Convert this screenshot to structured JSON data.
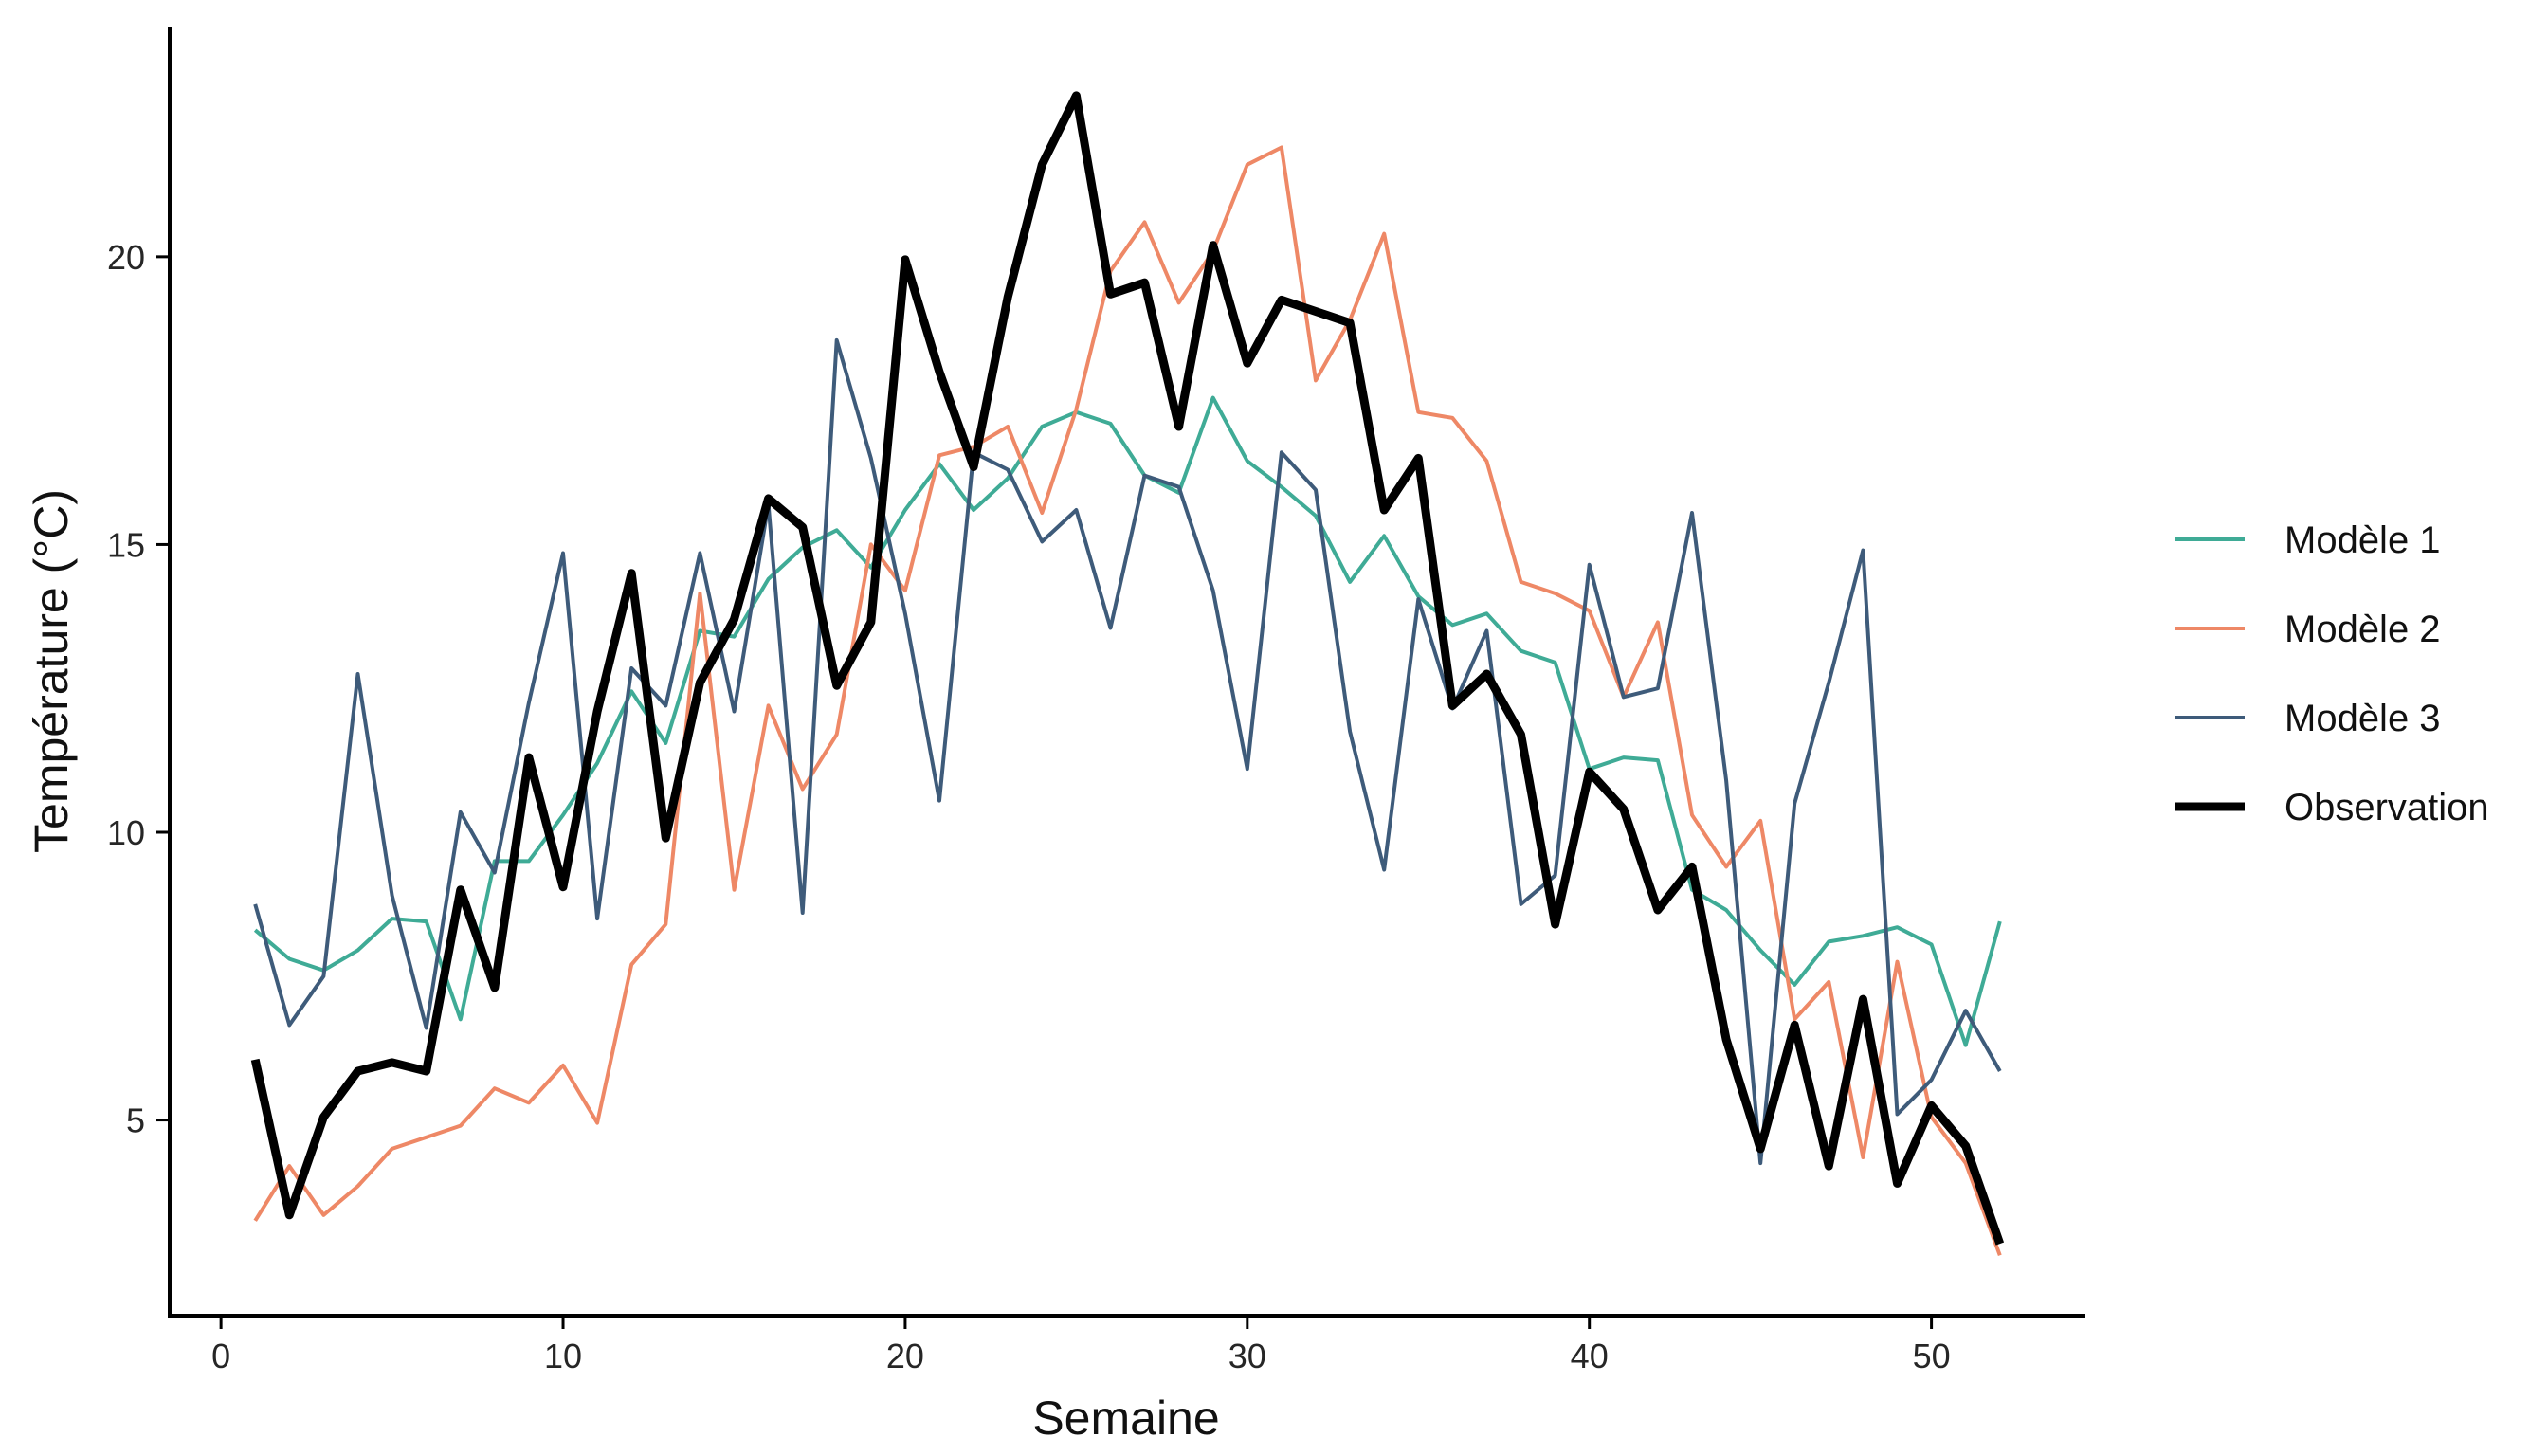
{
  "chart_data": {
    "type": "line",
    "xlabel": "Semaine",
    "ylabel": "Température (°C)",
    "xlim": [
      -1.5,
      54.5
    ],
    "ylim": [
      1.6,
      24.0
    ],
    "xticks": [
      0,
      10,
      20,
      30,
      40,
      50
    ],
    "yticks": [
      5,
      10,
      15,
      20
    ],
    "grid": false,
    "legend_position": "right",
    "x": [
      1,
      2,
      3,
      4,
      5,
      6,
      7,
      8,
      9,
      10,
      11,
      12,
      13,
      14,
      15,
      16,
      17,
      18,
      19,
      20,
      21,
      22,
      23,
      24,
      25,
      26,
      27,
      28,
      29,
      30,
      31,
      32,
      33,
      34,
      35,
      36,
      37,
      38,
      39,
      40,
      41,
      42,
      43,
      44,
      45,
      46,
      47,
      48,
      49,
      50,
      51,
      52
    ],
    "series": [
      {
        "name": "Modèle 1",
        "color": "#3fab96",
        "style": "thin",
        "values": [
          8.3,
          7.8,
          7.6,
          7.95,
          8.5,
          8.45,
          6.75,
          9.5,
          9.5,
          10.3,
          11.2,
          12.45,
          11.55,
          13.5,
          13.4,
          14.4,
          14.95,
          15.25,
          14.6,
          15.6,
          16.4,
          15.6,
          16.15,
          17.05,
          17.3,
          17.1,
          16.2,
          15.9,
          17.55,
          16.45,
          16.0,
          15.5,
          14.35,
          15.15,
          14.1,
          13.6,
          13.8,
          13.15,
          12.95,
          11.1,
          11.3,
          11.25,
          9.0,
          8.65,
          7.95,
          7.35,
          8.1,
          8.2,
          8.35,
          8.05,
          6.3,
          8.45
        ]
      },
      {
        "name": "Modèle 2",
        "color": "#ee8866",
        "style": "thin",
        "values": [
          3.25,
          4.2,
          3.35,
          3.85,
          4.5,
          4.7,
          4.9,
          5.55,
          5.3,
          5.95,
          4.95,
          7.7,
          8.4,
          14.15,
          9.0,
          12.2,
          10.75,
          11.7,
          15.0,
          14.2,
          16.55,
          16.7,
          17.05,
          15.55,
          17.35,
          19.75,
          20.6,
          19.2,
          20.1,
          21.6,
          21.9,
          17.85,
          18.9,
          20.4,
          17.3,
          17.2,
          16.45,
          14.35,
          14.15,
          13.85,
          12.35,
          13.65,
          10.3,
          9.4,
          10.2,
          6.75,
          7.4,
          4.35,
          7.75,
          5.05,
          4.25,
          2.65
        ]
      },
      {
        "name": "Modèle 3",
        "color": "#3e5b7a",
        "style": "thin",
        "values": [
          8.75,
          6.65,
          7.5,
          12.75,
          8.9,
          6.6,
          10.35,
          9.3,
          12.25,
          14.85,
          8.5,
          12.85,
          12.2,
          14.85,
          12.1,
          15.7,
          8.6,
          18.55,
          16.5,
          13.8,
          10.55,
          16.6,
          16.3,
          15.05,
          15.6,
          13.55,
          16.2,
          16.0,
          14.2,
          11.1,
          16.6,
          15.95,
          11.75,
          9.35,
          14.05,
          12.15,
          13.5,
          8.75,
          9.25,
          14.65,
          12.35,
          12.5,
          15.55,
          10.9,
          4.25,
          10.5,
          12.6,
          14.9,
          5.1,
          5.7,
          6.9,
          5.85
        ]
      },
      {
        "name": "Observation",
        "color": "#000000",
        "style": "thick",
        "values": [
          6.05,
          3.35,
          5.05,
          5.85,
          6.0,
          5.85,
          9.0,
          7.3,
          11.3,
          9.05,
          12.1,
          14.5,
          9.9,
          12.6,
          13.7,
          15.8,
          15.3,
          12.55,
          13.65,
          19.95,
          18.0,
          16.35,
          19.3,
          21.6,
          22.8,
          19.35,
          19.55,
          17.05,
          20.2,
          18.15,
          19.25,
          19.05,
          18.85,
          15.6,
          16.5,
          12.2,
          12.75,
          11.7,
          8.4,
          11.05,
          10.4,
          8.65,
          9.4,
          6.4,
          4.5,
          6.65,
          4.2,
          7.1,
          3.9,
          5.25,
          4.55,
          2.85
        ]
      }
    ]
  }
}
